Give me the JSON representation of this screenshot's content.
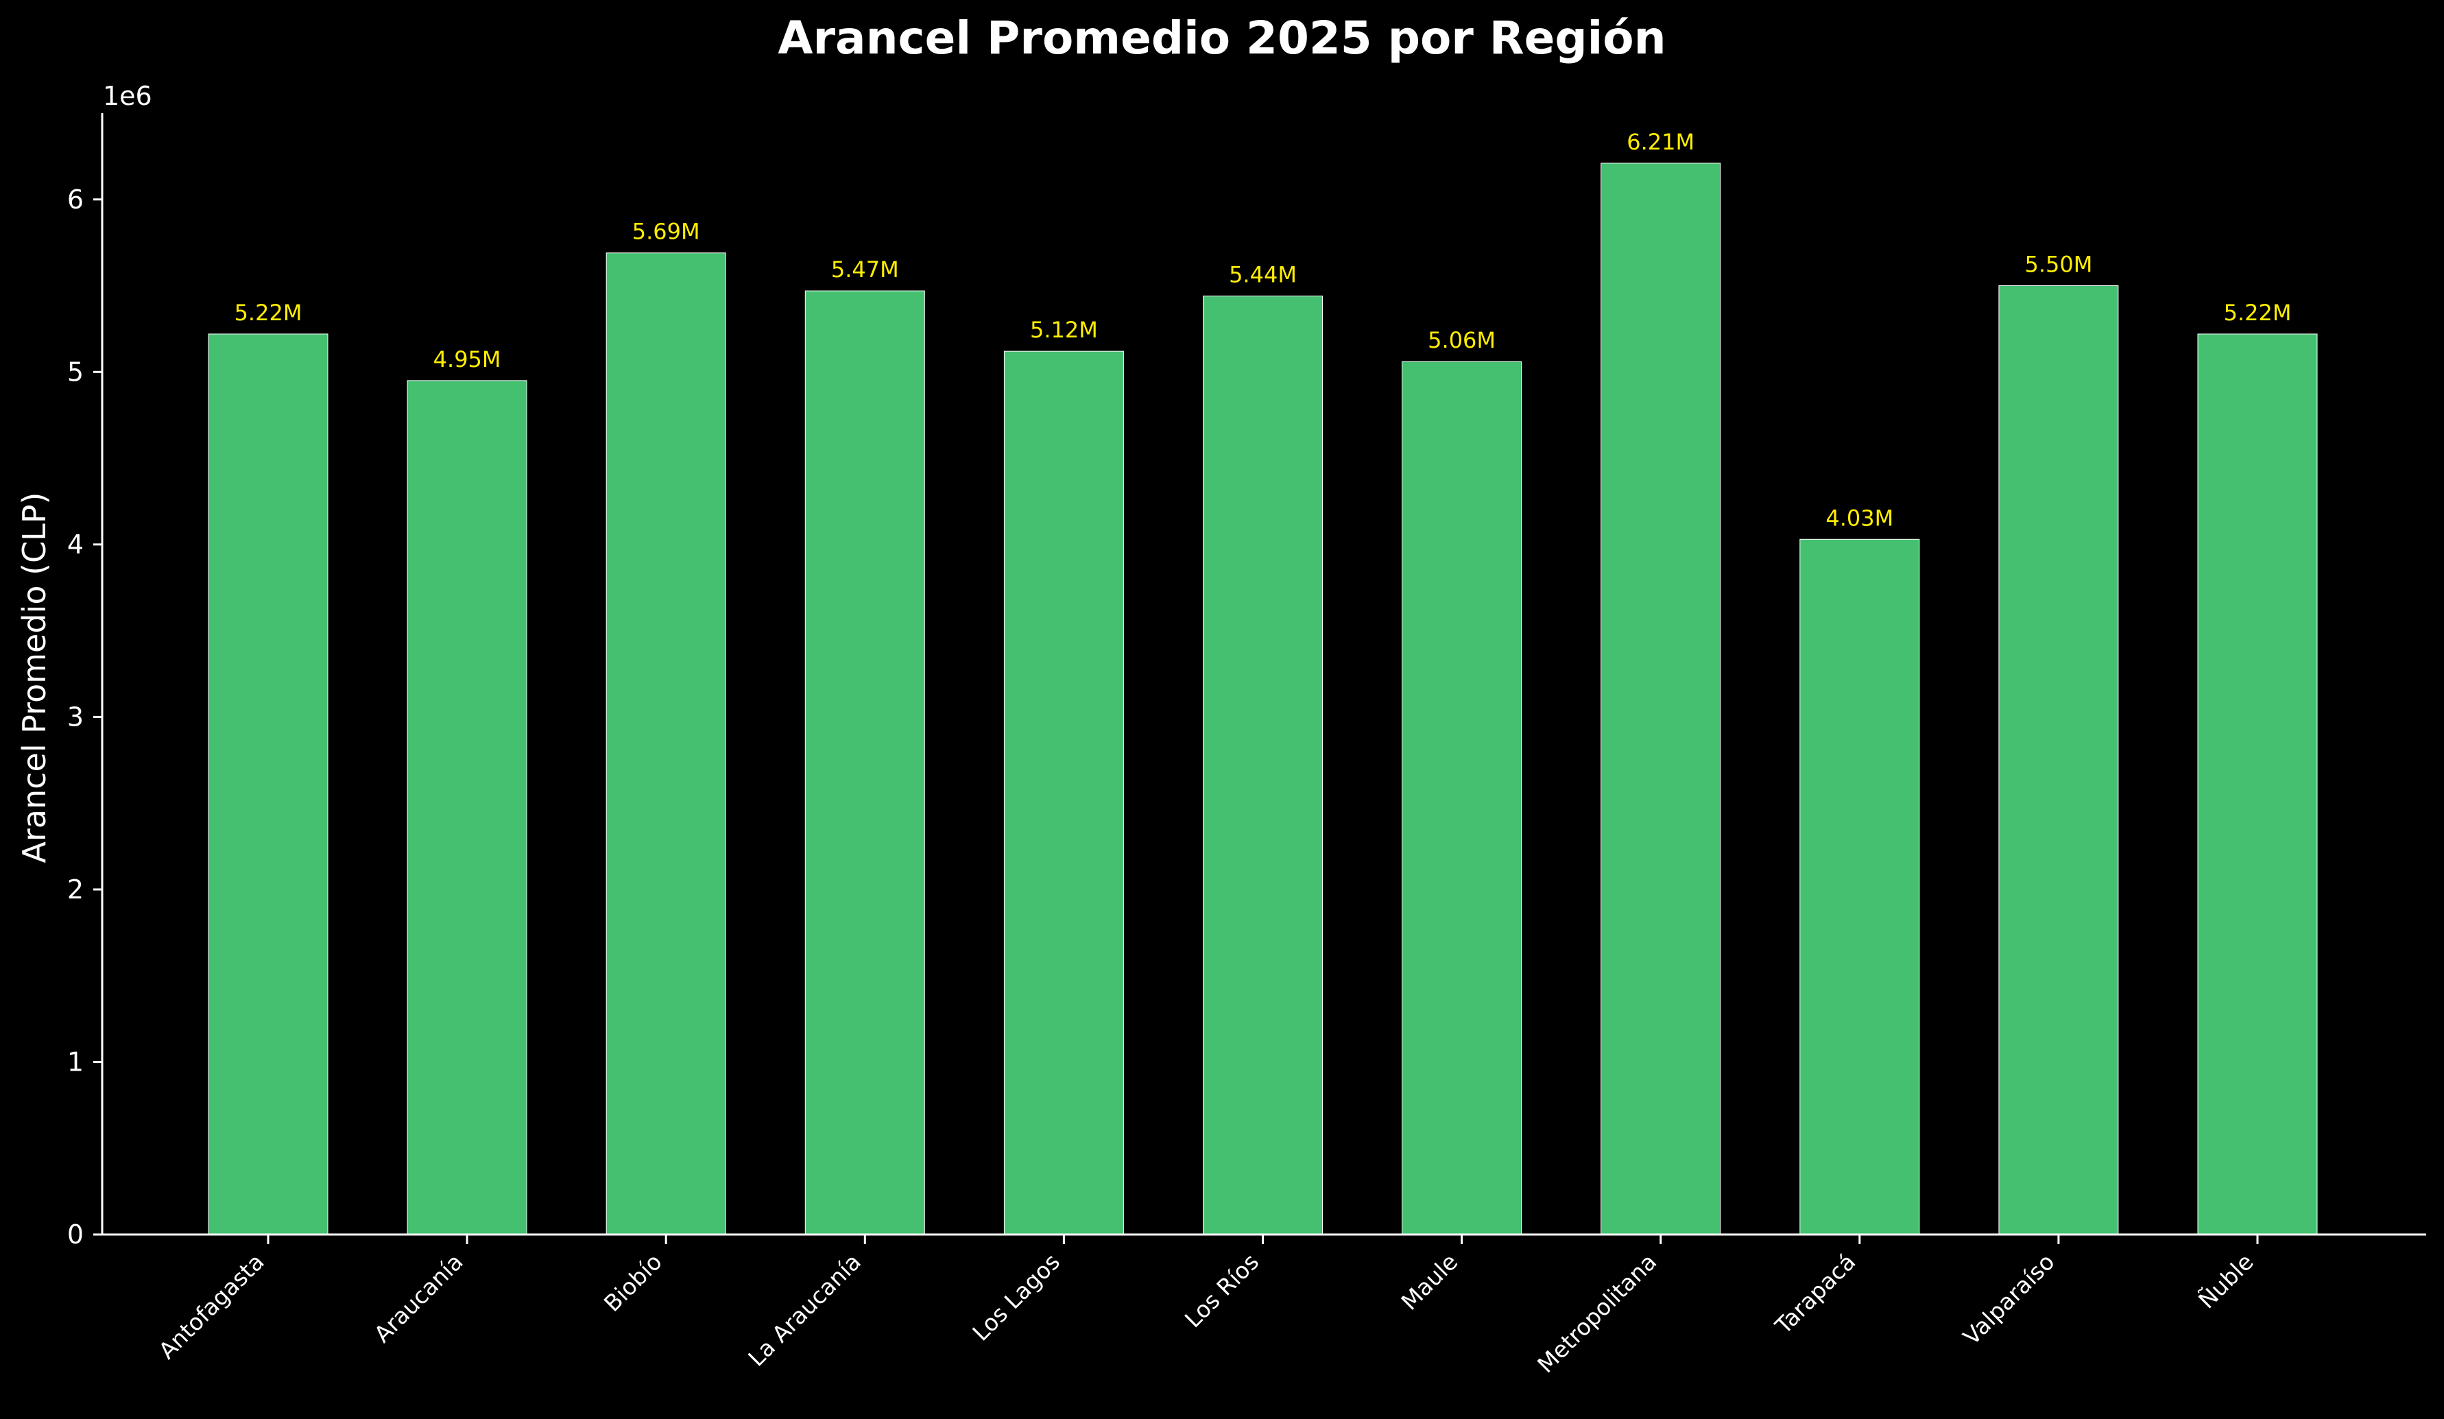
{
  "chart_data": {
    "type": "bar",
    "title": "Arancel Promedio 2025 por Región",
    "xlabel": "",
    "ylabel": "Arancel Promedio (CLP)",
    "y_offset_text": "1e6",
    "ylim": [
      0,
      6500000
    ],
    "yticks": [
      0,
      1,
      2,
      3,
      4,
      5,
      6
    ],
    "ytick_multiplier": 1000000,
    "grid": false,
    "legend": "none",
    "categories": [
      "Antofagasta",
      "Araucanía",
      "Biobío",
      "La Araucanía",
      "Los Lagos",
      "Los Ríos",
      "Maule",
      "Metropolitana",
      "Tarapacá",
      "Valparaíso",
      "Ñuble"
    ],
    "values": [
      5220000,
      4950000,
      5690000,
      5470000,
      5120000,
      5440000,
      5060000,
      6210000,
      4030000,
      5500000,
      5220000
    ],
    "value_labels": [
      "5.22M",
      "4.95M",
      "5.69M",
      "5.47M",
      "5.12M",
      "5.44M",
      "5.06M",
      "6.21M",
      "4.03M",
      "5.50M",
      "5.22M"
    ],
    "colors": {
      "background": "#000000",
      "bar": "#44c070",
      "bar_edge": "#ffffff",
      "value_label": "#ffee00",
      "text": "#ffffff",
      "axis": "#ffffff"
    }
  }
}
